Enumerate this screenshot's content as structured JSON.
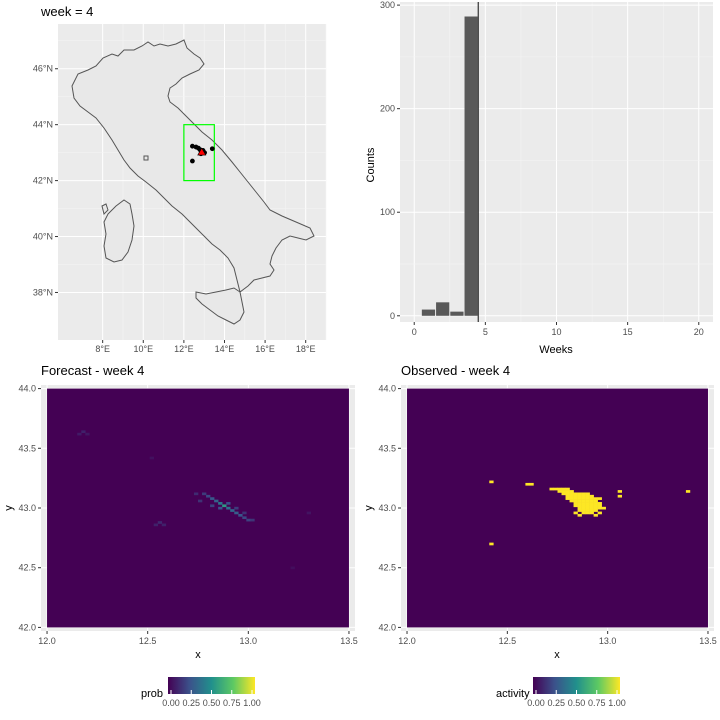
{
  "chart_data": [
    {
      "type": "map",
      "title": "week = 4",
      "x_ticks": [
        "8°E",
        "10°E",
        "12°E",
        "14°E",
        "16°E",
        "18°E"
      ],
      "x_tick_values": [
        8,
        10,
        12,
        14,
        16,
        18
      ],
      "y_ticks": [
        "38°N",
        "40°N",
        "42°N",
        "44°N",
        "46°N"
      ],
      "y_tick_values": [
        38,
        40,
        42,
        44,
        46
      ],
      "xlim": [
        5.8,
        19.0
      ],
      "ylim": [
        36.3,
        47.6
      ],
      "region_box": {
        "lon": [
          12.0,
          13.5
        ],
        "lat": [
          42.0,
          44.0
        ],
        "color": "#00ff00"
      },
      "points": [
        {
          "lon": 12.42,
          "lat": 43.23
        },
        {
          "lon": 12.6,
          "lat": 43.2
        },
        {
          "lon": 12.72,
          "lat": 43.16
        },
        {
          "lon": 12.8,
          "lat": 43.1
        },
        {
          "lon": 12.86,
          "lat": 43.05
        },
        {
          "lon": 12.9,
          "lat": 43.0
        },
        {
          "lon": 12.94,
          "lat": 43.08
        },
        {
          "lon": 13.02,
          "lat": 43.0
        },
        {
          "lon": 12.84,
          "lat": 42.96
        },
        {
          "lon": 13.4,
          "lat": 43.14
        },
        {
          "lon": 12.42,
          "lat": 42.7
        }
      ],
      "highlight": {
        "lon": 12.88,
        "lat": 43.02,
        "color": "#ff0000"
      }
    },
    {
      "type": "bar",
      "title": "",
      "xlabel": "Weeks",
      "ylabel": "Counts",
      "x_ticks": [
        0,
        5,
        10,
        15,
        20
      ],
      "y_ticks": [
        0,
        100,
        200,
        300
      ],
      "xlim": [
        -1,
        21
      ],
      "ylim": [
        -6,
        303
      ],
      "bars": [
        {
          "week": 1,
          "count": 6
        },
        {
          "week": 2,
          "count": 13
        },
        {
          "week": 3,
          "count": 4
        },
        {
          "week": 4,
          "count": 289
        }
      ],
      "vline": 4.5
    },
    {
      "type": "heatmap",
      "title": "Forecast - week 4",
      "xlabel": "x",
      "ylabel": "y",
      "x_ticks": [
        12.0,
        12.5,
        13.0,
        13.5
      ],
      "y_ticks": [
        42.0,
        42.5,
        43.0,
        43.5,
        44.0
      ],
      "xlim": [
        11.97,
        13.53
      ],
      "ylim": [
        41.97,
        44.03
      ],
      "grid_x": [
        12.0,
        13.5
      ],
      "grid_y": [
        42.0,
        44.0
      ],
      "legend_title": "prob",
      "legend_ticks": [
        "0.00",
        "0.25",
        "0.50",
        "0.75",
        "1.00"
      ],
      "cells": [
        {
          "x": 12.88,
          "y": 43.02,
          "v": 0.55
        },
        {
          "x": 12.86,
          "y": 43.04,
          "v": 0.4
        },
        {
          "x": 12.9,
          "y": 43.0,
          "v": 0.38
        },
        {
          "x": 12.84,
          "y": 43.06,
          "v": 0.32
        },
        {
          "x": 12.92,
          "y": 42.98,
          "v": 0.33
        },
        {
          "x": 12.82,
          "y": 43.08,
          "v": 0.28
        },
        {
          "x": 12.94,
          "y": 42.96,
          "v": 0.3
        },
        {
          "x": 12.96,
          "y": 42.94,
          "v": 0.27
        },
        {
          "x": 12.8,
          "y": 43.1,
          "v": 0.22
        },
        {
          "x": 12.98,
          "y": 42.92,
          "v": 0.22
        },
        {
          "x": 12.78,
          "y": 43.12,
          "v": 0.18
        },
        {
          "x": 13.0,
          "y": 42.9,
          "v": 0.2
        },
        {
          "x": 12.86,
          "y": 43.0,
          "v": 0.26
        },
        {
          "x": 12.9,
          "y": 43.04,
          "v": 0.24
        },
        {
          "x": 12.82,
          "y": 43.02,
          "v": 0.2
        },
        {
          "x": 12.94,
          "y": 43.0,
          "v": 0.18
        },
        {
          "x": 12.76,
          "y": 43.06,
          "v": 0.15
        },
        {
          "x": 12.74,
          "y": 43.12,
          "v": 0.13
        },
        {
          "x": 13.02,
          "y": 42.9,
          "v": 0.16
        },
        {
          "x": 12.98,
          "y": 42.96,
          "v": 0.15
        },
        {
          "x": 12.56,
          "y": 42.88,
          "v": 0.12
        },
        {
          "x": 12.54,
          "y": 42.86,
          "v": 0.1
        },
        {
          "x": 12.58,
          "y": 42.86,
          "v": 0.1
        },
        {
          "x": 12.18,
          "y": 43.64,
          "v": 0.1
        },
        {
          "x": 12.16,
          "y": 43.62,
          "v": 0.08
        },
        {
          "x": 12.2,
          "y": 43.62,
          "v": 0.07
        },
        {
          "x": 12.52,
          "y": 43.42,
          "v": 0.05
        },
        {
          "x": 13.3,
          "y": 42.96,
          "v": 0.06
        },
        {
          "x": 13.22,
          "y": 42.5,
          "v": 0.04
        }
      ]
    },
    {
      "type": "heatmap",
      "title": "Observed - week 4",
      "xlabel": "x",
      "ylabel": "y",
      "x_ticks": [
        12.0,
        12.5,
        13.0,
        13.5
      ],
      "y_ticks": [
        42.0,
        42.5,
        43.0,
        43.5,
        44.0
      ],
      "xlim": [
        11.97,
        13.53
      ],
      "ylim": [
        41.97,
        44.03
      ],
      "grid_x": [
        12.0,
        13.5
      ],
      "grid_y": [
        42.0,
        44.0
      ],
      "legend_title": "activity",
      "legend_ticks": [
        "0.00",
        "0.25",
        "0.50",
        "0.75",
        "1.00"
      ],
      "active_cells": [
        [
          12.42,
          43.22
        ],
        [
          12.6,
          43.2
        ],
        [
          12.62,
          43.2
        ],
        [
          12.72,
          43.16
        ],
        [
          12.74,
          43.16
        ],
        [
          12.76,
          43.16
        ],
        [
          12.78,
          43.16
        ],
        [
          12.8,
          43.16
        ],
        [
          12.76,
          43.14
        ],
        [
          12.78,
          43.14
        ],
        [
          12.8,
          43.14
        ],
        [
          12.82,
          43.14
        ],
        [
          12.78,
          43.12
        ],
        [
          12.8,
          43.12
        ],
        [
          12.82,
          43.12
        ],
        [
          12.84,
          43.12
        ],
        [
          12.86,
          43.12
        ],
        [
          12.88,
          43.12
        ],
        [
          12.9,
          43.12
        ],
        [
          12.8,
          43.1
        ],
        [
          12.82,
          43.1
        ],
        [
          12.84,
          43.1
        ],
        [
          12.86,
          43.1
        ],
        [
          12.88,
          43.1
        ],
        [
          12.9,
          43.1
        ],
        [
          12.92,
          43.1
        ],
        [
          12.8,
          43.08
        ],
        [
          12.82,
          43.08
        ],
        [
          12.84,
          43.08
        ],
        [
          12.86,
          43.08
        ],
        [
          12.88,
          43.08
        ],
        [
          12.9,
          43.08
        ],
        [
          12.92,
          43.08
        ],
        [
          12.94,
          43.08
        ],
        [
          12.82,
          43.06
        ],
        [
          12.84,
          43.06
        ],
        [
          12.86,
          43.06
        ],
        [
          12.88,
          43.06
        ],
        [
          12.9,
          43.06
        ],
        [
          12.92,
          43.06
        ],
        [
          12.94,
          43.06
        ],
        [
          12.84,
          43.04
        ],
        [
          12.86,
          43.04
        ],
        [
          12.88,
          43.04
        ],
        [
          12.9,
          43.04
        ],
        [
          12.92,
          43.04
        ],
        [
          12.94,
          43.04
        ],
        [
          12.96,
          43.04
        ],
        [
          12.84,
          43.02
        ],
        [
          12.86,
          43.02
        ],
        [
          12.88,
          43.02
        ],
        [
          12.9,
          43.02
        ],
        [
          12.92,
          43.02
        ],
        [
          12.94,
          43.02
        ],
        [
          12.96,
          43.02
        ],
        [
          12.86,
          43.0
        ],
        [
          12.88,
          43.0
        ],
        [
          12.9,
          43.0
        ],
        [
          12.92,
          43.0
        ],
        [
          12.94,
          43.0
        ],
        [
          12.96,
          43.0
        ],
        [
          12.98,
          43.0
        ],
        [
          12.86,
          42.98
        ],
        [
          12.88,
          42.98
        ],
        [
          12.9,
          42.98
        ],
        [
          12.92,
          42.98
        ],
        [
          12.94,
          42.98
        ],
        [
          12.84,
          42.96
        ],
        [
          12.88,
          42.96
        ],
        [
          12.9,
          42.96
        ],
        [
          12.92,
          42.96
        ],
        [
          12.96,
          42.96
        ],
        [
          12.86,
          42.94
        ],
        [
          12.94,
          42.94
        ],
        [
          12.96,
          43.08
        ],
        [
          13.06,
          43.14
        ],
        [
          13.06,
          43.1
        ],
        [
          13.4,
          43.14
        ],
        [
          12.42,
          42.7
        ]
      ]
    }
  ]
}
